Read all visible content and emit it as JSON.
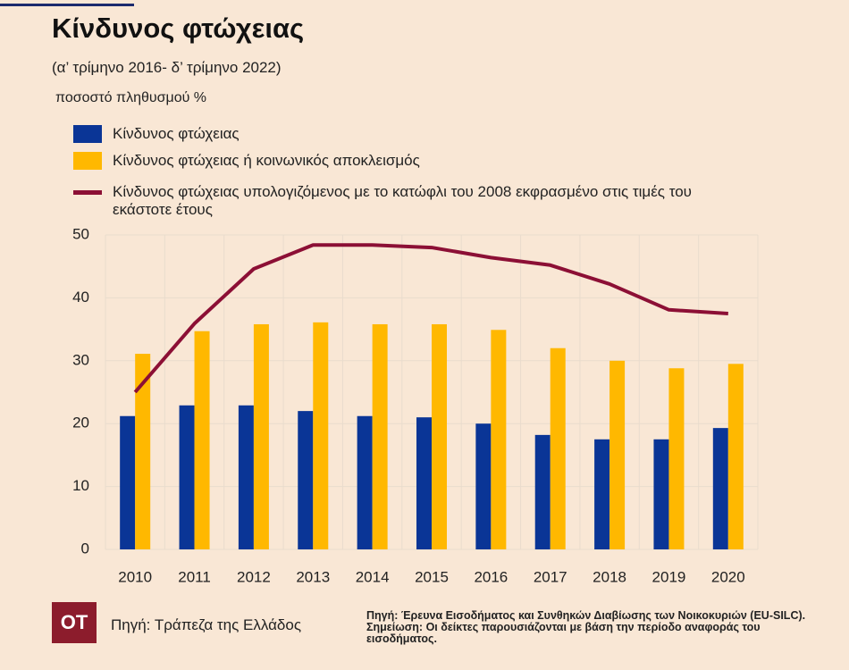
{
  "chart_data": {
    "type": "bar",
    "title": "Κίνδυνος φτώχειας",
    "subtitle": "(α’ τρίμηνο 2016- δ’ τρίμηνο 2022)",
    "y_label": "ποσοστό πληθυσμού %",
    "categories": [
      "2010",
      "2011",
      "2012",
      "2013",
      "2014",
      "2015",
      "2016",
      "2017",
      "2018",
      "2019",
      "2020"
    ],
    "series": [
      {
        "name": "Κίνδυνος φτώχειας",
        "color": "#0a3596",
        "values": [
          21.2,
          22.9,
          22.9,
          22.0,
          21.2,
          21.0,
          20.0,
          18.2,
          17.5,
          17.5,
          19.3
        ]
      },
      {
        "name": "Κίνδυνος φτώχειας ή κοινωνικός αποκλεισμός",
        "color": "#ffb800",
        "values": [
          31.1,
          34.7,
          35.8,
          36.1,
          35.8,
          35.8,
          34.9,
          32.0,
          30.0,
          28.8,
          29.5
        ]
      },
      {
        "name": "Κίνδυνος φτώχειας υπολογιζόμενος με το κατώφλι του 2008 εκφρασμένο στις τιμές του εκάστοτε έτους",
        "color": "#8c0f35",
        "type": "line",
        "values": [
          25.0,
          35.9,
          44.6,
          48.4,
          48.4,
          48.0,
          46.4,
          45.2,
          42.2,
          38.1,
          37.5
        ]
      }
    ],
    "ylim": [
      0,
      50
    ],
    "yticks": [
      0,
      10,
      20,
      30,
      40,
      50
    ],
    "grid": true
  },
  "footer": {
    "logo": "ΟΤ",
    "source": "Πηγή: Τράπεζα της Ελλάδος",
    "notes": [
      "Πηγή: Έρευνα Εισοδήματος και Συνθηκών Διαβίωσης των Νοικοκυριών (EU-SILC).",
      "Σημείωση: Οι δείκτες παρουσιάζονται με βάση την περίοδο αναφοράς του εισοδήματος."
    ]
  }
}
